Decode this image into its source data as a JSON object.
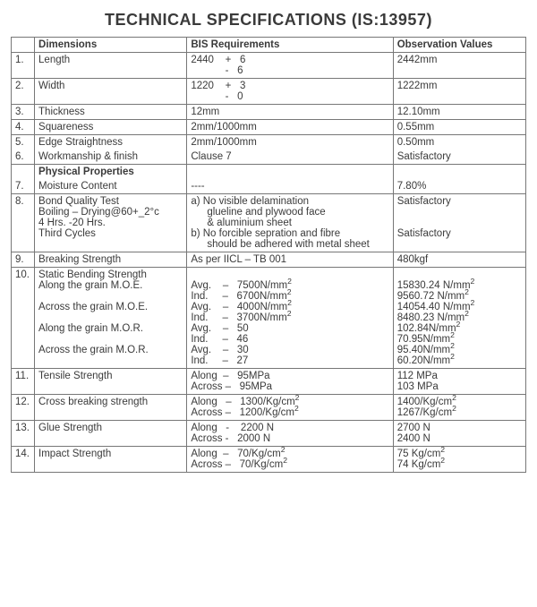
{
  "title": "TECHNICAL SPECIFICATIONS (IS:13957)",
  "headers": {
    "c1": "",
    "c2": "Dimensions",
    "c3": "BIS Requirements",
    "c4": "Observation Values"
  },
  "rows": {
    "r1": {
      "n": "1.",
      "dim": "Length",
      "bis_a": "2440    +   6",
      "bis_b": "            -   6",
      "obs": "2442mm"
    },
    "r2": {
      "n": "2.",
      "dim": "Width",
      "bis_a": "1220    +   3",
      "bis_b": "            -   0",
      "obs": "1222mm"
    },
    "r3": {
      "n": "3.",
      "dim": "Thickness",
      "bis": "12mm",
      "obs": "12.10mm"
    },
    "r4": {
      "n": "4.",
      "dim": "Squareness",
      "bis": "2mm/1000mm",
      "obs": "0.55mm"
    },
    "r5": {
      "n": "5.",
      "dim": "Edge Straightness",
      "bis": "2mm/1000mm",
      "obs": "0.50mm"
    },
    "r6": {
      "n": "6.",
      "dim": "Workmanship & finish",
      "bis": "Clause 7",
      "obs": "Satisfactory"
    },
    "phys_hdr": "Physical Properties",
    "r7": {
      "n": "7.",
      "dim": "Moisture Content",
      "bis": "----",
      "obs": "7.80%"
    },
    "r8": {
      "n": "8.",
      "dim1": "Bond Quality Test",
      "dim2": "Boiling – Drying@60+_2°c",
      "dim3": "4 Hrs. -20 Hrs.",
      "dim4": "Third Cycles",
      "bis_a1": "a) No visible delamination",
      "bis_a2": "glueline and plywood face",
      "bis_a3": "& aluminium sheet",
      "bis_b1": "b) No forcible sepration and fibre",
      "bis_b2": "should be adhered with metal sheet",
      "obs_a": "Satisfactory",
      "obs_b": "Satisfactory"
    },
    "r9": {
      "n": "9.",
      "dim": "Breaking Strength",
      "bis": "As per IICL – TB 001",
      "obs": "480kgf"
    },
    "r10": {
      "n": "10.",
      "dim0": "Static Bending Strength",
      "dim1": "Along the grain M.O.E.",
      "dim2": "Across the grain M.O.E.",
      "dim3": "Along the grain M.O.R.",
      "dim4": "Across the grain M.O.R.",
      "b1": "Avg.    –   7500N/mm",
      "o1": "15830.24 N/mm",
      "b2": "Ind.     –   6700N/mm",
      "o2": "9560.72 N/mm",
      "b3": "Avg.    –   4000N/mm",
      "o3": "14054.40 N/mm",
      "b4": "Ind.     –   3700N/mm",
      "o4": "8480.23 N/mm",
      "b5": "Avg.    –   50",
      "o5": "102.84N/mm",
      "b6": "Ind.     –   46",
      "o6": "70.95N/mm",
      "b7": "Avg.    –   30",
      "o7": "95.40N/mm",
      "b8": "Ind.     –   27",
      "o8": "60.20N/mm"
    },
    "r11": {
      "n": "11.",
      "dim": "Tensile Strength",
      "b1": "Along  –   95MPa",
      "b2": "Across –   95MPa",
      "o1": "112 MPa",
      "o2": "103 MPa"
    },
    "r12": {
      "n": "12.",
      "dim": "Cross breaking strength",
      "b1": "Along   –   1300/Kg/cm",
      "b2": "Across –   1200/Kg/cm",
      "o1": "1400/Kg/cm",
      "o2": "1267/Kg/cm"
    },
    "r13": {
      "n": "13.",
      "dim": "Glue Strength",
      "b1": "Along   -    2200 N",
      "b2": "Across -   2000 N",
      "o1": "2700 N",
      "o2": "2400 N"
    },
    "r14": {
      "n": "14.",
      "dim": "Impact Strength",
      "b1": "Along  –   70/Kg/cm",
      "b2": "Across –   70/Kg/cm",
      "o1": "75 Kg/cm",
      "o2": "74 Kg/cm"
    }
  }
}
